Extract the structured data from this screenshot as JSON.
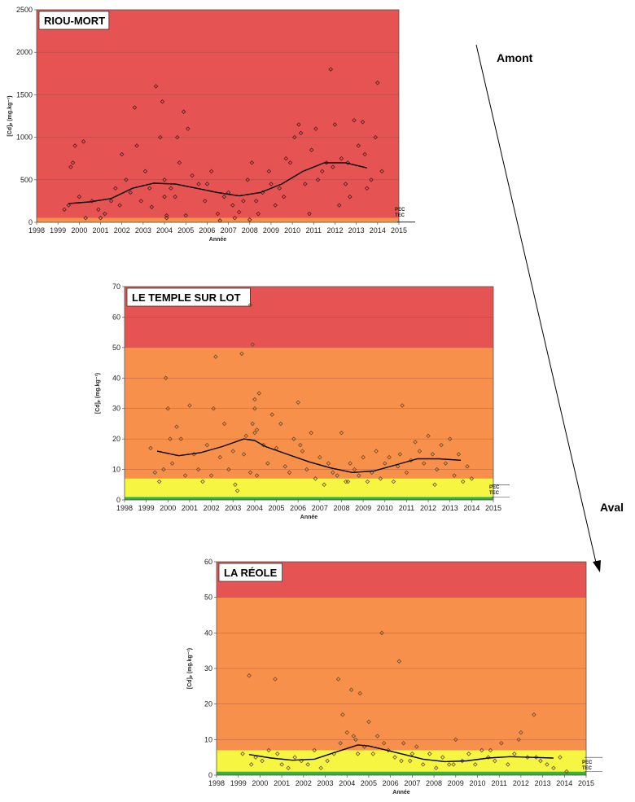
{
  "annotations": {
    "upstream": "Amont",
    "downstream": "Aval"
  },
  "chart_data": [
    {
      "type": "scatter",
      "title": "RIOU-MORT",
      "xlabel": "Année",
      "ylabel": "[Cd]ₚ (mg.kg⁻¹)",
      "xlim": [
        1998,
        2015
      ],
      "ylim": [
        0,
        2500
      ],
      "xticks": [
        "1998",
        "1999",
        "2000",
        "2001",
        "2002",
        "2003",
        "2004",
        "2005",
        "2006",
        "2007",
        "2008",
        "2009",
        "2010",
        "2011",
        "2012",
        "2013",
        "2014",
        "2015"
      ],
      "yticks": [
        "0",
        "500",
        "1000",
        "1500",
        "2000",
        "2500"
      ],
      "zones": [
        {
          "from": 0,
          "to": 1.0,
          "color": "#3cb03c"
        },
        {
          "from": 1.0,
          "to": 5.0,
          "color": "#f5f542"
        },
        {
          "from": 5.0,
          "to": 50,
          "color": "#f7904a"
        },
        {
          "from": 50,
          "to": 2500,
          "color": "#e55353"
        }
      ],
      "reference_lines": [
        {
          "label": "PEC",
          "value": 5.0
        },
        {
          "label": "TEC",
          "value": 1.0
        }
      ],
      "series": [
        {
          "x": [
            1999.3,
            1999.5,
            1999.7,
            1999.8,
            2000.0,
            2000.3,
            2000.6,
            2000.9,
            2001.2,
            2001.5,
            2001.7,
            2002.0,
            2002.2,
            2002.4,
            2002.6,
            2002.9,
            2003.1,
            2003.4,
            2003.6,
            2003.8,
            2003.9,
            2004.0,
            2004.1,
            2004.3,
            2004.5,
            2004.7,
            2004.9,
            2005.1,
            2005.3,
            2005.6,
            2005.9,
            2006.2,
            2006.5,
            2006.8,
            2007.0,
            2007.3,
            2007.5,
            2007.7,
            2007.9,
            2008.1,
            2008.3,
            2008.6,
            2008.9,
            2009.2,
            2009.4,
            2009.7,
            2009.9,
            2010.1,
            2010.3,
            2010.6,
            2010.9,
            2011.1,
            2011.4,
            2011.6,
            2011.8,
            2012.0,
            2012.3,
            2012.5,
            2012.7,
            2012.9,
            2013.1,
            2013.3,
            2013.5,
            2013.7,
            2013.9,
            2014.0,
            2014.2,
            1999.6,
            2000.2,
            2001.0,
            2001.9,
            2002.7,
            2003.3,
            2004.6,
            2005.0,
            2006.0,
            2007.2,
            2008.4,
            2009.0,
            2009.6,
            2010.4,
            2011.2,
            2011.9,
            2012.6,
            2013.4,
            2004.0,
            2004.1,
            2006.6,
            2008.0,
            2010.8,
            2012.2
          ],
          "y": [
            150,
            200,
            700,
            900,
            300,
            50,
            250,
            150,
            100,
            250,
            400,
            800,
            500,
            350,
            1350,
            250,
            600,
            180,
            1600,
            1000,
            1420,
            500,
            80,
            400,
            300,
            700,
            1300,
            1100,
            550,
            450,
            250,
            600,
            100,
            300,
            350,
            50,
            120,
            250,
            500,
            700,
            250,
            350,
            600,
            200,
            400,
            750,
            700,
            1000,
            1150,
            450,
            850,
            1100,
            600,
            700,
            1800,
            1150,
            750,
            450,
            300,
            1200,
            900,
            1180,
            400,
            500,
            1000,
            1640,
            600,
            650,
            950,
            50,
            200,
            900,
            400,
            1000,
            80,
            450,
            200,
            100,
            450,
            300,
            1050,
            500,
            650,
            700,
            800,
            300,
            50,
            20,
            30,
            100,
            200
          ]
        },
        {
          "name": "trend",
          "x": [
            1999.5,
            2000.5,
            2001.5,
            2002.5,
            2003.5,
            2004.5,
            2005.5,
            2006.5,
            2007.5,
            2008.5,
            2009.5,
            2010.5,
            2011.5,
            2012.5,
            2013.5
          ],
          "y": [
            220,
            240,
            280,
            400,
            460,
            450,
            400,
            350,
            310,
            350,
            450,
            600,
            700,
            700,
            640
          ]
        }
      ]
    },
    {
      "type": "scatter",
      "title": "LE TEMPLE SUR LOT",
      "xlabel": "Année",
      "ylabel": "[Cd]ₚ (mg.kg⁻¹)",
      "xlim": [
        1998,
        2015
      ],
      "ylim": [
        0,
        70
      ],
      "xticks": [
        "1998",
        "1999",
        "2000",
        "2001",
        "2002",
        "2003",
        "2004",
        "2005",
        "2006",
        "2007",
        "2008",
        "2009",
        "2010",
        "2011",
        "2012",
        "2013",
        "2014",
        "2015"
      ],
      "yticks": [
        "0",
        "10",
        "20",
        "30",
        "40",
        "50",
        "60",
        "70"
      ],
      "zones": [
        {
          "from": 0,
          "to": 1.0,
          "color": "#3cb03c"
        },
        {
          "from": 1.0,
          "to": 7.0,
          "color": "#f5f542"
        },
        {
          "from": 7.0,
          "to": 50,
          "color": "#f7904a"
        },
        {
          "from": 50,
          "to": 70,
          "color": "#e55353"
        }
      ],
      "reference_lines": [
        {
          "label": "PEC",
          "value": 5.0
        },
        {
          "label": "TEC",
          "value": 1.0
        }
      ],
      "series": [
        {
          "x": [
            1999.2,
            1999.4,
            1999.6,
            1999.8,
            2000.0,
            2000.2,
            2000.4,
            2000.6,
            2000.8,
            2001.0,
            2001.2,
            2001.4,
            2001.6,
            2001.8,
            2002.0,
            2002.2,
            2002.4,
            2002.6,
            2002.8,
            2003.0,
            2003.2,
            2003.4,
            2003.6,
            2003.8,
            2003.9,
            2004.0,
            2004.1,
            2004.2,
            2004.4,
            2004.6,
            2004.8,
            2005.0,
            2005.2,
            2005.4,
            2005.6,
            2005.8,
            2006.0,
            2006.2,
            2006.4,
            2006.6,
            2006.8,
            2007.0,
            2007.2,
            2007.4,
            2007.6,
            2007.8,
            2008.0,
            2008.2,
            2008.4,
            2008.6,
            2008.8,
            2009.0,
            2009.2,
            2009.4,
            2009.6,
            2009.8,
            2010.0,
            2010.2,
            2010.4,
            2010.6,
            2010.8,
            2011.0,
            2011.2,
            2011.4,
            2011.6,
            2011.8,
            2012.0,
            2012.2,
            2012.4,
            2012.6,
            2012.8,
            2013.0,
            2013.2,
            2013.4,
            2013.6,
            2013.8,
            2014.0,
            1999.9,
            2000.1,
            2002.1,
            2003.1,
            2003.5,
            2003.8,
            2003.9,
            2004.0,
            2004.0,
            2004.1,
            2006.1,
            2008.3,
            2010.7,
            2012.3
          ],
          "y": [
            17,
            9,
            6,
            10,
            30,
            12,
            24,
            20,
            8,
            31,
            15,
            10,
            6,
            18,
            8,
            47,
            14,
            25,
            10,
            16,
            3,
            48,
            21,
            64,
            51,
            33,
            23,
            35,
            18,
            12,
            28,
            17,
            25,
            11,
            9,
            20,
            32,
            16,
            10,
            22,
            7,
            14,
            5,
            12,
            9,
            8,
            22,
            6,
            12,
            10,
            8,
            14,
            6,
            9,
            16,
            7,
            12,
            14,
            6,
            11,
            31,
            9,
            13,
            19,
            16,
            12,
            21,
            15,
            10,
            18,
            12,
            20,
            8,
            15,
            6,
            11,
            7,
            40,
            20,
            30,
            5,
            15,
            9,
            25,
            22,
            30,
            8,
            18,
            6,
            15,
            5
          ],
          "note": "scatter points"
        },
        {
          "name": "trend",
          "x": [
            1999.5,
            2000.5,
            2001.5,
            2002.5,
            2003.5,
            2004.0,
            2004.5,
            2005.5,
            2006.5,
            2007.5,
            2008.5,
            2009.5,
            2010.5,
            2011.5,
            2012.5,
            2013.5
          ],
          "y": [
            16,
            14.5,
            15.5,
            17.5,
            20,
            19.5,
            17.5,
            15,
            12.5,
            10.5,
            9,
            9.5,
            11.5,
            13.5,
            13.5,
            13
          ]
        }
      ]
    },
    {
      "type": "scatter",
      "title": "LA RÉOLE",
      "xlabel": "Année",
      "ylabel": "[Cd]ₚ (mg.kg⁻¹)",
      "xlim": [
        1998,
        2015
      ],
      "ylim": [
        0,
        60
      ],
      "xticks": [
        "1998",
        "1999",
        "2000",
        "2001",
        "2002",
        "2003",
        "2004",
        "2005",
        "2006",
        "2007",
        "2008",
        "2009",
        "2010",
        "2011",
        "2012",
        "2013",
        "2014",
        "2015"
      ],
      "yticks": [
        "0",
        "10",
        "20",
        "30",
        "40",
        "50",
        "60"
      ],
      "zones": [
        {
          "from": 0,
          "to": 1.0,
          "color": "#3cb03c"
        },
        {
          "from": 1.0,
          "to": 7.0,
          "color": "#f5f542"
        },
        {
          "from": 7.0,
          "to": 50,
          "color": "#f7904a"
        },
        {
          "from": 50,
          "to": 60,
          "color": "#e55353"
        }
      ],
      "reference_lines": [
        {
          "label": "PEC",
          "value": 5.0
        },
        {
          "label": "TEC",
          "value": 1.0
        }
      ],
      "series": [
        {
          "x": [
            1999.2,
            1999.5,
            1999.8,
            2000.1,
            2000.4,
            2000.7,
            2001.0,
            2001.3,
            2001.6,
            2001.9,
            2002.2,
            2002.5,
            2002.8,
            2003.1,
            2003.4,
            2003.6,
            2003.8,
            2004.0,
            2004.2,
            2004.4,
            2004.6,
            2004.8,
            2005.0,
            2005.2,
            2005.4,
            2005.6,
            2005.9,
            2006.2,
            2006.4,
            2006.6,
            2006.9,
            2007.2,
            2007.5,
            2007.8,
            2008.1,
            2008.4,
            2008.7,
            2009.0,
            2009.3,
            2009.6,
            2009.9,
            2010.2,
            2010.5,
            2010.8,
            2011.1,
            2011.4,
            2011.7,
            2012.0,
            2012.3,
            2012.6,
            2012.9,
            2013.2,
            2013.5,
            2013.8,
            2014.1,
            1999.6,
            2000.8,
            2003.7,
            2004.3,
            2004.5,
            2005.7,
            2006.5,
            2007.0,
            2008.9,
            2010.6,
            2011.9,
            2012.7
          ],
          "y": [
            6,
            28,
            5,
            4,
            7,
            27,
            3,
            2,
            5,
            4,
            3,
            7,
            2,
            4,
            6,
            27,
            17,
            12,
            24,
            10,
            23,
            8,
            15,
            6,
            11,
            40,
            7,
            5,
            32,
            9,
            4,
            8,
            3,
            6,
            2,
            5,
            3,
            10,
            4,
            6,
            3,
            7,
            5,
            4,
            9,
            3,
            6,
            12,
            5,
            17,
            4,
            3,
            2,
            5,
            1,
            3,
            6,
            9,
            11,
            6,
            9,
            4,
            6,
            3,
            7,
            10,
            5
          ]
        },
        {
          "name": "trend",
          "x": [
            1999.5,
            2000.5,
            2001.5,
            2002.5,
            2003.5,
            2004.5,
            2005.0,
            2005.5,
            2006.5,
            2007.5,
            2008.5,
            2009.5,
            2010.5,
            2011.5,
            2012.5,
            2013.5
          ],
          "y": [
            5.8,
            4.8,
            4.2,
            4.5,
            6.5,
            8.5,
            8.2,
            7.5,
            6.0,
            4.5,
            3.8,
            4.0,
            4.8,
            5.2,
            5.0,
            4.8
          ]
        }
      ]
    }
  ]
}
